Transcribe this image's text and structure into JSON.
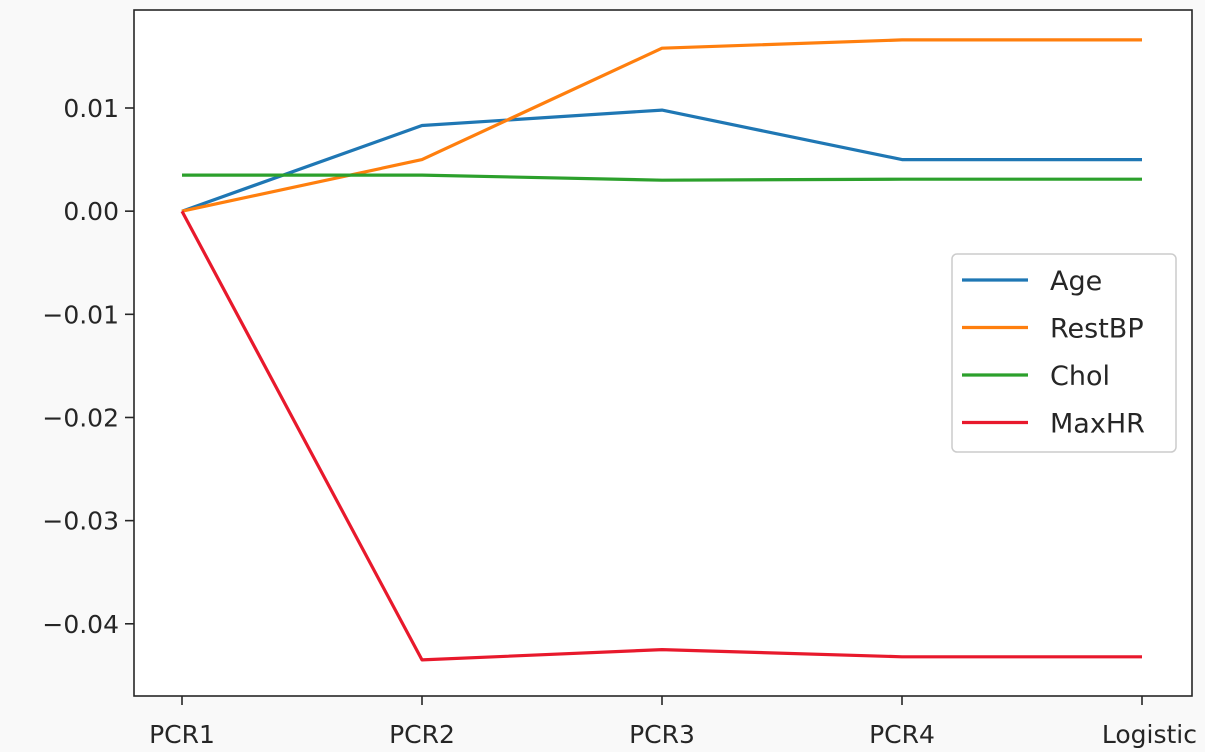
{
  "chart_data": {
    "type": "line",
    "title": "",
    "xlabel": "",
    "ylabel": "",
    "categories": [
      "PCR1",
      "PCR2",
      "PCR3",
      "PCR4",
      "Logistic"
    ],
    "ylim": [
      -0.047,
      0.0195
    ],
    "yticks": [
      0.01,
      0.0,
      -0.01,
      -0.02,
      -0.03,
      -0.04
    ],
    "ytick_labels": [
      "0.01",
      "0.00",
      "−0.01",
      "−0.02",
      "−0.03",
      "−0.04"
    ],
    "grid": false,
    "legend_position": "center-right",
    "series": [
      {
        "name": "Age",
        "color": "#1f77b4",
        "values": [
          0.0,
          0.0083,
          0.0098,
          0.005,
          0.005
        ]
      },
      {
        "name": "RestBP",
        "color": "#ff7f0e",
        "values": [
          0.0,
          0.005,
          0.0158,
          0.0166,
          0.0166
        ]
      },
      {
        "name": "Chol",
        "color": "#2ca02c",
        "values": [
          0.0035,
          0.0035,
          0.003,
          0.0031,
          0.0031
        ]
      },
      {
        "name": "MaxHR",
        "color": "#e8192c",
        "values": [
          0.0,
          -0.0435,
          -0.0425,
          -0.0432,
          -0.0432
        ]
      }
    ]
  }
}
